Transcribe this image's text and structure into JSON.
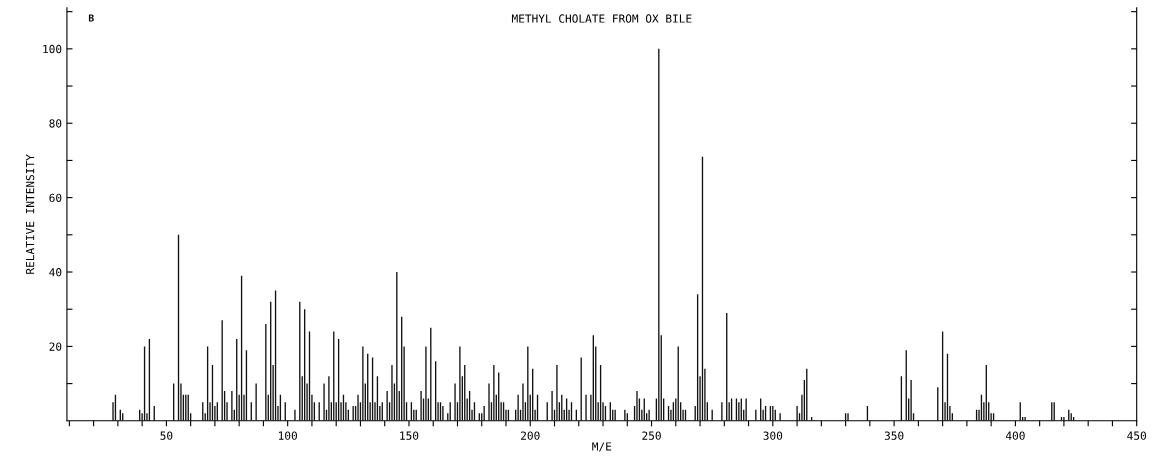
{
  "chart_data": {
    "type": "bar",
    "title": "METHYL CHOLATE FROM OX BILE",
    "xlabel": "M/E",
    "ylabel": "RELATIVE INTENSITY",
    "annotations": [
      "B"
    ],
    "x": [
      28,
      29,
      31,
      32,
      39,
      40,
      41,
      42,
      43,
      45,
      53,
      55,
      56,
      57,
      58,
      59,
      60,
      65,
      66,
      67,
      68,
      69,
      70,
      71,
      73,
      74,
      75,
      77,
      78,
      79,
      80,
      81,
      82,
      83,
      85,
      87,
      91,
      92,
      93,
      94,
      95,
      96,
      97,
      99,
      103,
      105,
      106,
      107,
      108,
      109,
      110,
      111,
      113,
      115,
      116,
      117,
      118,
      119,
      120,
      121,
      122,
      123,
      124,
      125,
      127,
      128,
      129,
      130,
      131,
      132,
      133,
      134,
      135,
      136,
      137,
      138,
      139,
      141,
      142,
      143,
      144,
      145,
      146,
      147,
      148,
      149,
      151,
      152,
      153,
      155,
      156,
      157,
      158,
      159,
      161,
      162,
      163,
      164,
      166,
      167,
      169,
      170,
      171,
      172,
      173,
      174,
      175,
      176,
      177,
      179,
      180,
      181,
      183,
      184,
      185,
      186,
      187,
      188,
      189,
      190,
      191,
      194,
      195,
      196,
      197,
      198,
      199,
      200,
      201,
      202,
      203,
      207,
      209,
      210,
      211,
      212,
      213,
      214,
      215,
      216,
      217,
      219,
      221,
      223,
      225,
      226,
      227,
      228,
      229,
      230,
      231,
      233,
      234,
      235,
      239,
      240,
      243,
      244,
      245,
      246,
      247,
      248,
      249,
      252,
      253,
      254,
      255,
      257,
      258,
      259,
      260,
      261,
      262,
      263,
      264,
      268,
      269,
      270,
      271,
      272,
      273,
      275,
      279,
      281,
      282,
      283,
      285,
      286,
      287,
      288,
      289,
      293,
      295,
      296,
      297,
      299,
      300,
      301,
      303,
      310,
      311,
      312,
      313,
      314,
      316,
      330,
      331,
      339,
      353,
      355,
      356,
      357,
      358,
      368,
      370,
      371,
      372,
      373,
      374,
      384,
      385,
      386,
      387,
      388,
      389,
      390,
      391,
      402,
      403,
      404,
      415,
      416,
      419,
      420,
      422,
      423,
      424
    ],
    "values": [
      5,
      7,
      3,
      2,
      3,
      2,
      20,
      2,
      22,
      4,
      10,
      50,
      10,
      7,
      7,
      7,
      2,
      5,
      2,
      20,
      5,
      15,
      4,
      5,
      27,
      8,
      5,
      8,
      3,
      22,
      7,
      39,
      7,
      19,
      5,
      10,
      26,
      7,
      32,
      15,
      35,
      4,
      7,
      5,
      3,
      32,
      12,
      30,
      10,
      24,
      7,
      5,
      5,
      10,
      3,
      12,
      5,
      24,
      5,
      22,
      5,
      7,
      5,
      3,
      4,
      4,
      7,
      5,
      20,
      10,
      18,
      5,
      17,
      5,
      12,
      4,
      5,
      8,
      5,
      15,
      10,
      40,
      8,
      28,
      20,
      5,
      5,
      3,
      3,
      8,
      6,
      20,
      6,
      25,
      16,
      5,
      5,
      4,
      2,
      5,
      10,
      5,
      20,
      12,
      15,
      6,
      8,
      3,
      5,
      2,
      2,
      4,
      10,
      5,
      15,
      7,
      13,
      5,
      5,
      3,
      3,
      3,
      7,
      3,
      10,
      5,
      20,
      7,
      14,
      3,
      7,
      5,
      8,
      3,
      15,
      5,
      7,
      3,
      6,
      3,
      5,
      3,
      17,
      7,
      7,
      23,
      20,
      5,
      15,
      5,
      4,
      5,
      3,
      3,
      3,
      2,
      4,
      8,
      6,
      3,
      6,
      2,
      3,
      6,
      100,
      23,
      6,
      4,
      3,
      5,
      6,
      20,
      5,
      3,
      3,
      4,
      34,
      12,
      71,
      14,
      5,
      3,
      5,
      29,
      5,
      6,
      6,
      5,
      6,
      3,
      6,
      3,
      6,
      3,
      4,
      4,
      4,
      3,
      2,
      4,
      2,
      7,
      11,
      14,
      1,
      2,
      2,
      4,
      12,
      19,
      6,
      11,
      2,
      9,
      24,
      5,
      18,
      4,
      2,
      3,
      3,
      7,
      5,
      15,
      5,
      2,
      2,
      5,
      1,
      1,
      5,
      5,
      1,
      1,
      3,
      2,
      1
    ],
    "color": "#111111",
    "xlim": [
      9,
      450
    ],
    "xticks": [
      {
        "value": 10,
        "label": null
      },
      {
        "value": 20,
        "label": null
      },
      {
        "value": 30,
        "label": null
      },
      {
        "value": 40,
        "label": null
      },
      50,
      {
        "value": 60,
        "label": null
      },
      {
        "value": 70,
        "label": null
      },
      {
        "value": 80,
        "label": null
      },
      {
        "value": 90,
        "label": null
      },
      100,
      {
        "value": 110,
        "label": null
      },
      {
        "value": 120,
        "label": null
      },
      {
        "value": 130,
        "label": null
      },
      {
        "value": 140,
        "label": null
      },
      150,
      {
        "value": 160,
        "label": null
      },
      {
        "value": 170,
        "label": null
      },
      {
        "value": 180,
        "label": null
      },
      {
        "value": 190,
        "label": null
      },
      200,
      {
        "value": 210,
        "label": null
      },
      {
        "value": 220,
        "label": null
      },
      {
        "value": 230,
        "label": null
      },
      {
        "value": 240,
        "label": null
      },
      250,
      {
        "value": 260,
        "label": null
      },
      {
        "value": 270,
        "label": null
      },
      {
        "value": 280,
        "label": null
      },
      {
        "value": 290,
        "label": null
      },
      300,
      {
        "value": 310,
        "label": null
      },
      {
        "value": 320,
        "label": null
      },
      {
        "value": 330,
        "label": null
      },
      {
        "value": 340,
        "label": null
      },
      350,
      {
        "value": 360,
        "label": null
      },
      {
        "value": 370,
        "label": null
      },
      {
        "value": 380,
        "label": null
      },
      {
        "value": 390,
        "label": null
      },
      400,
      {
        "value": 410,
        "label": null
      },
      {
        "value": 420,
        "label": null
      },
      {
        "value": 430,
        "label": null
      },
      {
        "value": 440,
        "label": null
      },
      450
    ],
    "ylim": [
      0,
      111
    ],
    "yticks": [
      {
        "value": 10,
        "label": null
      },
      20,
      {
        "value": 30,
        "label": null
      },
      40,
      {
        "value": 50,
        "label": null
      },
      60,
      {
        "value": 70,
        "label": null
      },
      80,
      {
        "value": 90,
        "label": null
      },
      100,
      {
        "value": 110,
        "label": null
      }
    ],
    "grid": false,
    "legend": false
  }
}
